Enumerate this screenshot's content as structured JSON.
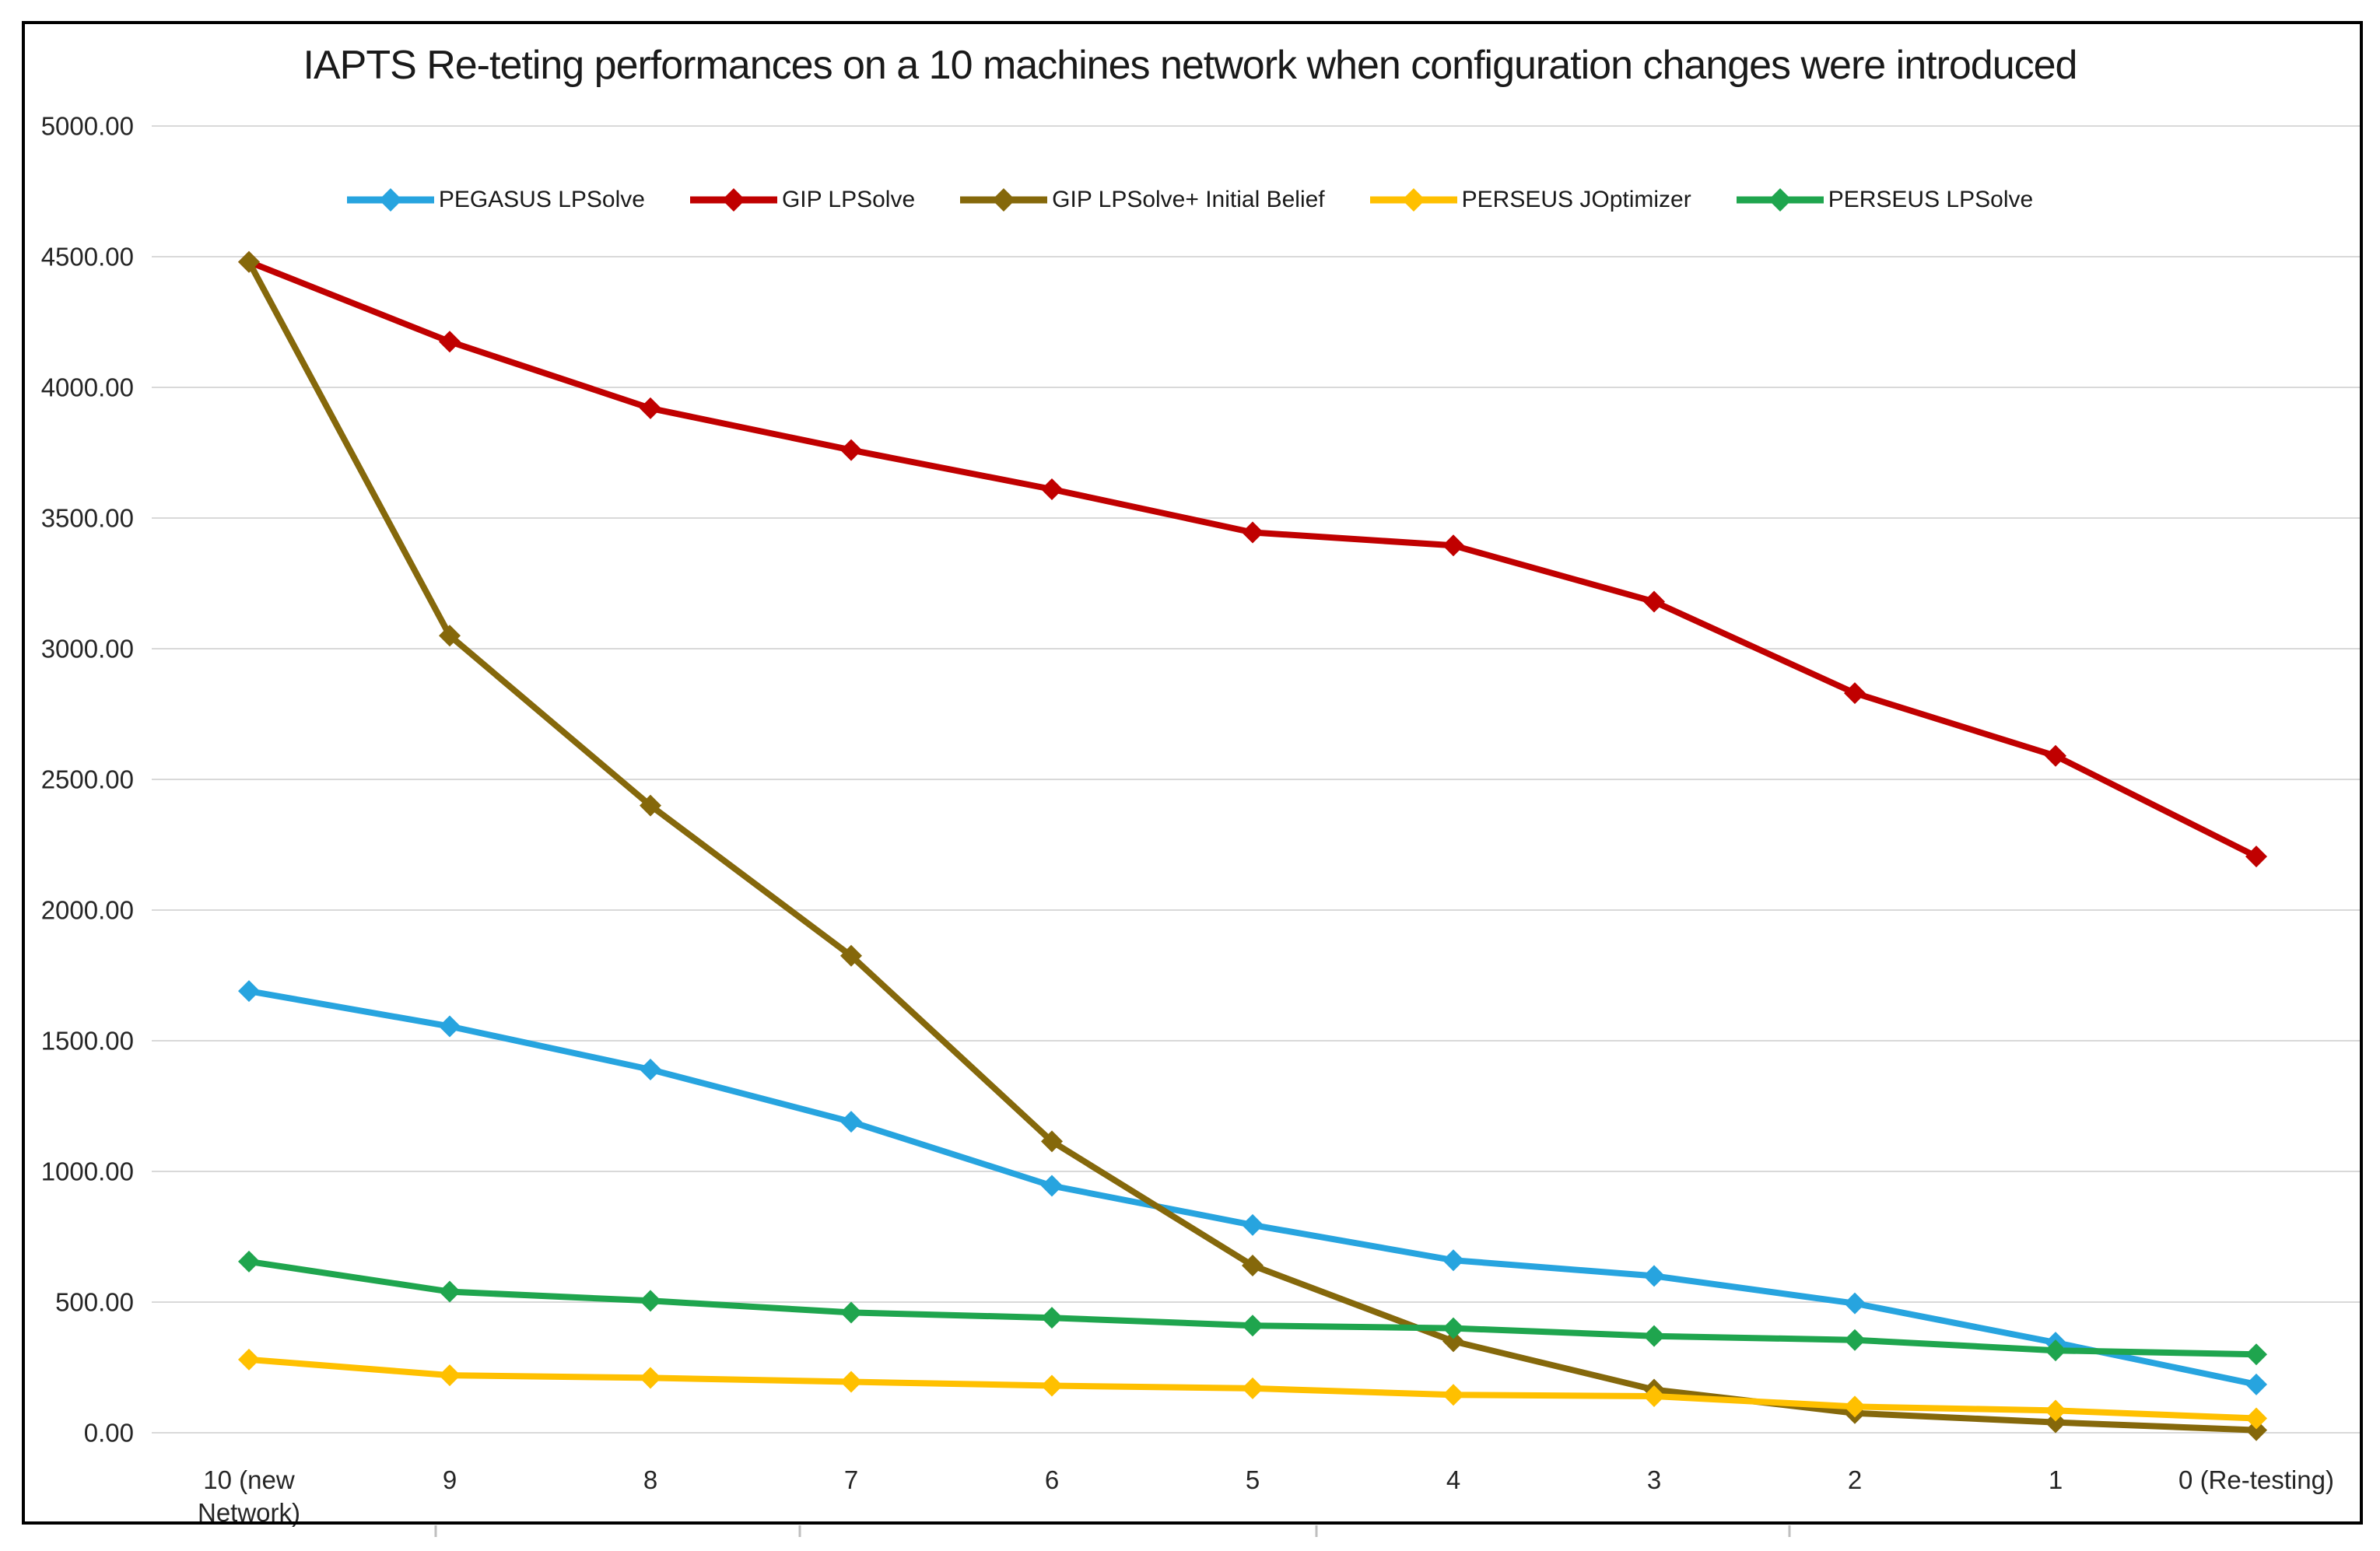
{
  "figure": {
    "background": "#FFFFFF",
    "border_color": "#000000"
  },
  "chart_data": {
    "type": "line",
    "title": "IAPTS Re-teting performances on a 10 machines network when configuration changes were introduced",
    "categories": [
      "10 (new\nNetwork)",
      "9",
      "8",
      "7",
      "6",
      "5",
      "4",
      "3",
      "2",
      "1",
      "0 (Re-testing)"
    ],
    "series": [
      {
        "name": "PEGASUS LPSolve",
        "color": "#27A4DF",
        "values": [
          1690,
          1555,
          1390,
          1190,
          945,
          795,
          660,
          600,
          495,
          345,
          185
        ]
      },
      {
        "name": "GIP LPSolve",
        "color": "#C00000",
        "values": [
          4480,
          4175,
          3920,
          3760,
          3610,
          3445,
          3395,
          3180,
          2830,
          2590,
          2205
        ]
      },
      {
        "name": "GIP LPSolve+ Initial Belief",
        "color": "#85680B",
        "values": [
          4480,
          3050,
          2400,
          1825,
          1115,
          640,
          350,
          165,
          75,
          40,
          10
        ]
      },
      {
        "name": "PERSEUS JOptimizer",
        "color": "#FFC000",
        "values": [
          280,
          220,
          210,
          195,
          180,
          170,
          145,
          140,
          100,
          85,
          55
        ]
      },
      {
        "name": "PERSEUS LPSolve",
        "color": "#1FA54E",
        "values": [
          655,
          540,
          505,
          460,
          440,
          410,
          400,
          370,
          355,
          315,
          300
        ]
      }
    ],
    "y_axis": {
      "min": 0,
      "max": 5000,
      "step": 500,
      "tick_labels": [
        "0.00",
        "500.00",
        "1000.00",
        "1500.00",
        "2000.00",
        "2500.00",
        "3000.00",
        "3500.00",
        "4000.00",
        "4500.00",
        "5000.00"
      ]
    },
    "x_axis": {
      "tick_labels_inline": [
        "10 (new Network)",
        "9",
        "8",
        "7",
        "6",
        "5",
        "4",
        "3",
        "2",
        "1",
        "0 (Re-testing)"
      ]
    },
    "legend_position": "top-center-inside",
    "grid": true,
    "gridline_color": "#D9D9D9",
    "marker": "diamond",
    "ylim": [
      0,
      5000
    ]
  }
}
